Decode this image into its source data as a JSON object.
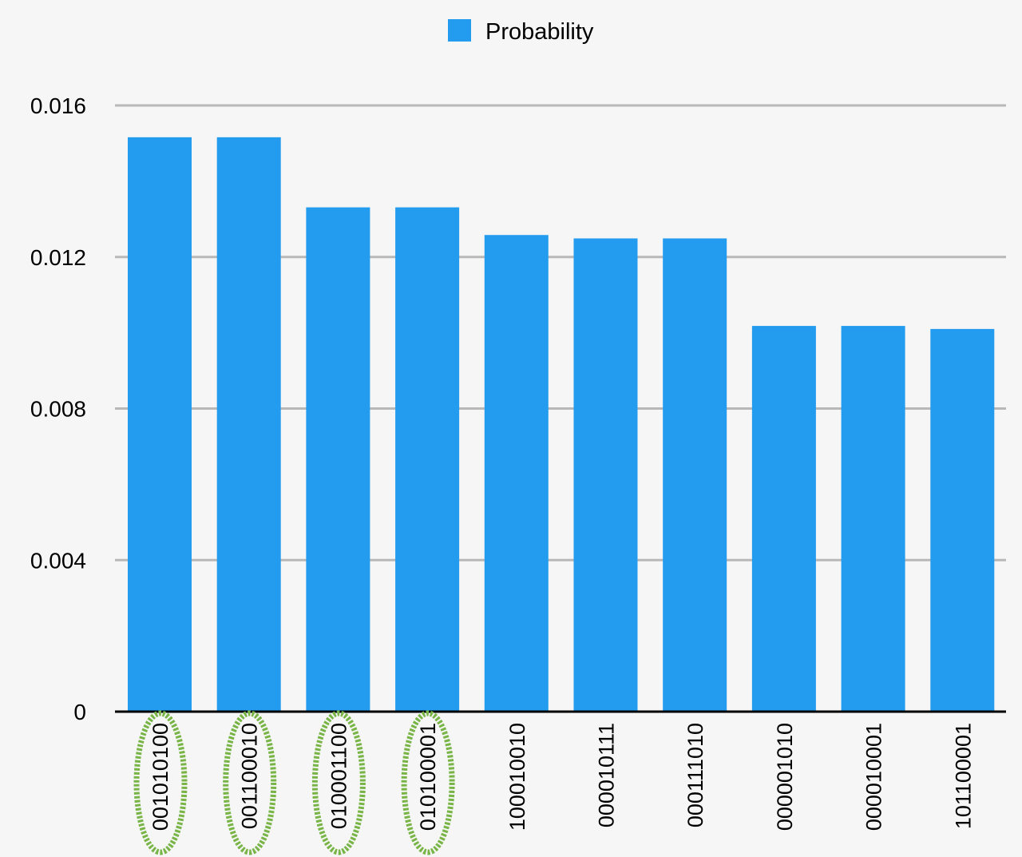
{
  "chart_data": {
    "type": "bar",
    "categories": [
      "001010100",
      "001100010",
      "010001100",
      "010100001",
      "100010010",
      "000010111",
      "000111010",
      "000001010",
      "000010001",
      "101100001"
    ],
    "series": [
      {
        "name": "Probability",
        "values": [
          0.01516,
          0.01516,
          0.01331,
          0.01331,
          0.01258,
          0.01249,
          0.01249,
          0.01018,
          0.01018,
          0.0101
        ]
      }
    ],
    "ylim": [
      0,
      0.016
    ],
    "yticks": [
      "0",
      "0.004",
      "0.008",
      "0.012",
      "0.016"
    ],
    "grid": true,
    "legend_position": "top-center",
    "highlighted_categories": [
      "001010100",
      "001100010",
      "010001100",
      "010100001"
    ],
    "colors": {
      "bar": "#239bee",
      "grid": "#b8b8b8",
      "axis": "#000000",
      "highlight": "#78b446",
      "background": "#f5f6f5"
    }
  }
}
